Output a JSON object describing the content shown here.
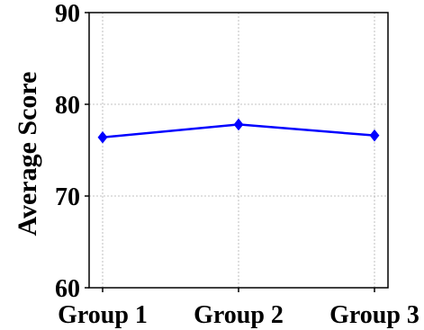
{
  "chart_data": {
    "type": "line",
    "categories": [
      "Group 1",
      "Group 2",
      "Group 3"
    ],
    "series": [
      {
        "values": [
          76.4,
          77.8,
          76.6
        ],
        "color": "#0000ff",
        "marker": "diamond"
      }
    ],
    "title": "",
    "xlabel": "",
    "ylabel": "Average Score",
    "ylim": [
      60,
      90
    ],
    "yticks": [
      60,
      70,
      80,
      90
    ],
    "grid": true
  }
}
